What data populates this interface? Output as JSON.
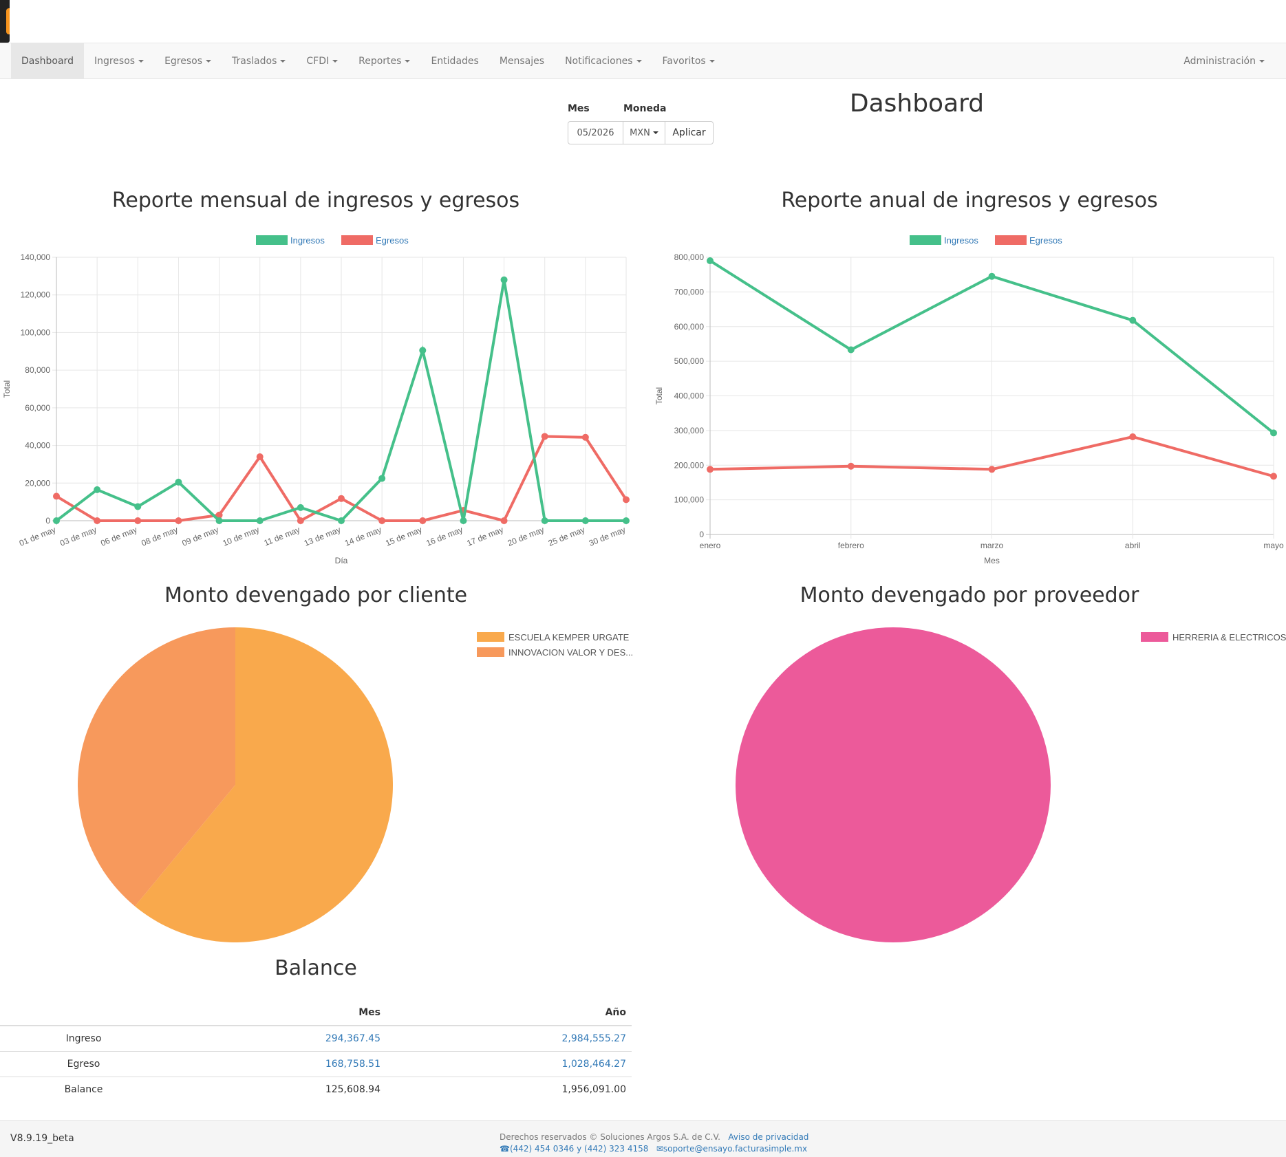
{
  "nav": {
    "items": [
      {
        "label": "Dashboard",
        "active": true,
        "dropdown": false
      },
      {
        "label": "Ingresos",
        "dropdown": true
      },
      {
        "label": "Egresos",
        "dropdown": true
      },
      {
        "label": "Traslados",
        "dropdown": true
      },
      {
        "label": "CFDI",
        "dropdown": true
      },
      {
        "label": "Reportes",
        "dropdown": true
      },
      {
        "label": "Entidades",
        "dropdown": false
      },
      {
        "label": "Mensajes",
        "dropdown": false
      },
      {
        "label": "Notificaciones",
        "dropdown": true
      },
      {
        "label": "Favoritos",
        "dropdown": true
      }
    ],
    "right": {
      "label": "Administración",
      "dropdown": true
    }
  },
  "filters": {
    "month_label": "Mes",
    "month_value": "05/2026",
    "currency_label": "Moneda",
    "currency_value": "MXN",
    "apply_label": "Aplicar"
  },
  "page": {
    "title": "Dashboard"
  },
  "colors": {
    "ingresos": "#45c08a",
    "egresos": "#ef6b65",
    "pie_a": "#f9a94c",
    "pie_b": "#f7995c",
    "pie_prov": "#ec5a9a"
  },
  "chart_data": [
    {
      "type": "line",
      "title": "Reporte mensual de ingresos y egresos",
      "xlabel": "Día",
      "ylabel": "Total",
      "ylim": [
        0,
        140000
      ],
      "yticks": [
        "0",
        "20,000",
        "40,000",
        "60,000",
        "80,000",
        "100,000",
        "120,000",
        "140,000"
      ],
      "legend": "top",
      "grid": true,
      "categories": [
        "01 de may",
        "03 de may",
        "06 de may",
        "08 de may",
        "09 de may",
        "10 de may",
        "11 de may",
        "13 de may",
        "14 de may",
        "15 de may",
        "16 de may",
        "17 de may",
        "20 de may",
        "25 de may",
        "30 de may"
      ],
      "series": [
        {
          "name": "Ingresos",
          "values": [
            0,
            16500,
            7500,
            20500,
            0,
            0,
            7000,
            0,
            22500,
            90500,
            0,
            128000,
            0,
            0,
            0
          ]
        },
        {
          "name": "Egresos",
          "values": [
            13000,
            0,
            0,
            0,
            3000,
            34000,
            0,
            11800,
            0,
            0,
            5500,
            0,
            44800,
            44300,
            11200
          ]
        }
      ]
    },
    {
      "type": "line",
      "title": "Reporte anual de ingresos y egresos",
      "xlabel": "Mes",
      "ylabel": "Total",
      "ylim": [
        0,
        800000
      ],
      "yticks": [
        "0",
        "100,000",
        "200,000",
        "300,000",
        "400,000",
        "500,000",
        "600,000",
        "700,000",
        "800,000"
      ],
      "legend": "top",
      "grid": true,
      "categories": [
        "enero",
        "febrero",
        "marzo",
        "abril",
        "mayo"
      ],
      "series": [
        {
          "name": "Ingresos",
          "values": [
            790000,
            533000,
            745000,
            618000,
            293000
          ]
        },
        {
          "name": "Egresos",
          "values": [
            188000,
            197000,
            188000,
            282000,
            168000
          ]
        }
      ]
    },
    {
      "type": "pie",
      "title": "Monto devengado por cliente",
      "legend": "top-right",
      "labels": [
        "ESCUELA KEMPER URGATE",
        "INNOVACION VALOR Y DES..."
      ],
      "values": [
        61,
        39
      ]
    },
    {
      "type": "pie",
      "title": "Monto devengado por proveedor",
      "legend": "top-right",
      "labels": [
        "HERRERIA & ELECTRICOS"
      ],
      "values": [
        100
      ]
    }
  ],
  "balance": {
    "title": "Balance",
    "headers": [
      "",
      "Mes",
      "Año"
    ],
    "rows": [
      {
        "label": "Ingreso",
        "mes": "294,367.45",
        "anio": "2,984,555.27"
      },
      {
        "label": "Egreso",
        "mes": "168,758.51",
        "anio": "1,028,464.27"
      },
      {
        "label": "Balance",
        "mes": "125,608.94",
        "anio": "1,956,091.00"
      }
    ]
  },
  "footer": {
    "version": "V8.9.19_beta",
    "rights": "Derechos reservados © Soluciones Argos S.A. de C.V.",
    "privacy": "Aviso de privacidad",
    "phones": "(442) 454 0346 y (442) 323 4158",
    "email": "soporte@ensayo.facturasimple.mx"
  }
}
